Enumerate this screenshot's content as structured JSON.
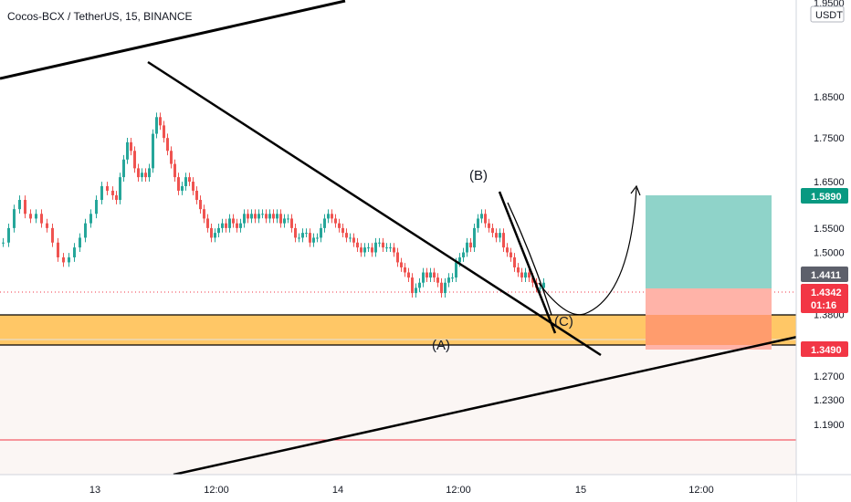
{
  "header": {
    "title": "Cocos-BCX / TetherUS, 15, BINANCE"
  },
  "price_axis": {
    "currency": "USDT",
    "top_partial_label": "1.9500",
    "tick_labels": [
      "1.8500",
      "1.7500",
      "1.6500",
      "1.5500",
      "1.5000",
      "1.3800",
      "1.3200",
      "1.2700",
      "1.2300",
      "1.1900"
    ]
  },
  "time_axis": {
    "tick_labels": [
      "13",
      "12:00",
      "14",
      "12:00",
      "15",
      "12:00"
    ]
  },
  "badges": {
    "target": {
      "label": "1.5890",
      "color": "#089981"
    },
    "mid": {
      "label": "1.4411",
      "color": "#5d606b"
    },
    "last": {
      "label": "1.4342",
      "countdown": "01:16",
      "color": "#f23645"
    },
    "stop": {
      "label": "1.3490",
      "color": "#f23645"
    }
  },
  "annotations": {
    "wave_a": "(A)",
    "wave_b": "(B)",
    "wave_c": "(C)"
  },
  "colors": {
    "up_candle": "#26a69a",
    "down_candle": "#ef5350",
    "zone_fill": "#ffb74d",
    "profit_fill": "#80cbc4",
    "loss_fill": "#ffab91",
    "red_line": "#f23645"
  },
  "chart_data": {
    "type": "candlestick",
    "title": "Cocos-BCX / TetherUS, 15, BINANCE",
    "y_unit": "USDT",
    "y_scale": "log",
    "ylim": [
      1.17,
      1.96
    ],
    "x_ticks": [
      "13",
      "12:00",
      "14",
      "12:00",
      "15",
      "12:00"
    ],
    "series": [
      {
        "x": [
          0,
          6,
          12,
          18,
          24,
          30,
          36,
          42,
          48,
          54,
          60,
          66,
          72,
          78,
          84,
          90,
          96,
          102,
          108,
          114,
          120,
          124,
          128,
          132,
          136,
          140,
          144,
          148,
          152,
          156,
          160,
          164,
          168,
          172,
          176,
          180,
          184,
          188,
          192,
          196,
          200,
          204,
          208,
          212,
          216,
          220,
          224,
          228,
          232,
          236,
          240,
          244,
          248,
          252,
          256,
          260,
          264,
          268,
          272,
          276,
          280,
          284,
          288,
          292,
          296,
          300,
          304,
          308,
          312,
          316,
          320,
          324,
          328,
          332,
          336,
          340,
          344,
          348,
          352,
          356,
          360,
          364,
          368,
          372,
          376,
          380,
          384,
          388,
          392,
          396,
          400,
          404,
          408,
          412,
          416,
          420,
          424,
          428,
          432,
          436,
          440,
          444,
          448,
          452,
          456,
          460,
          464,
          468,
          472,
          476,
          480,
          484,
          488,
          492,
          496,
          500,
          504,
          508,
          512,
          516,
          520,
          524,
          528,
          532,
          536,
          540,
          544,
          548,
          552,
          556,
          560,
          564,
          568,
          572,
          576,
          580,
          584,
          588,
          592
        ],
        "close": [
          1.52,
          1.55,
          1.59,
          1.61,
          1.58,
          1.57,
          1.58,
          1.56,
          1.55,
          1.52,
          1.49,
          1.48,
          1.49,
          1.51,
          1.53,
          1.56,
          1.58,
          1.61,
          1.64,
          1.63,
          1.62,
          1.61,
          1.66,
          1.7,
          1.74,
          1.72,
          1.68,
          1.66,
          1.67,
          1.66,
          1.68,
          1.76,
          1.8,
          1.78,
          1.75,
          1.72,
          1.69,
          1.66,
          1.63,
          1.64,
          1.66,
          1.65,
          1.63,
          1.61,
          1.59,
          1.57,
          1.55,
          1.53,
          1.54,
          1.55,
          1.56,
          1.55,
          1.57,
          1.56,
          1.55,
          1.56,
          1.58,
          1.57,
          1.58,
          1.57,
          1.58,
          1.58,
          1.57,
          1.58,
          1.57,
          1.58,
          1.56,
          1.57,
          1.57,
          1.55,
          1.53,
          1.53,
          1.54,
          1.54,
          1.52,
          1.53,
          1.53,
          1.55,
          1.57,
          1.58,
          1.57,
          1.56,
          1.55,
          1.54,
          1.53,
          1.53,
          1.52,
          1.51,
          1.5,
          1.51,
          1.51,
          1.5,
          1.52,
          1.52,
          1.51,
          1.51,
          1.51,
          1.5,
          1.48,
          1.47,
          1.46,
          1.45,
          1.42,
          1.43,
          1.44,
          1.46,
          1.45,
          1.46,
          1.45,
          1.44,
          1.42,
          1.44,
          1.45,
          1.45,
          1.48,
          1.49,
          1.5,
          1.52,
          1.51,
          1.55,
          1.57,
          1.58,
          1.56,
          1.55,
          1.54,
          1.53,
          1.54,
          1.51,
          1.5,
          1.49,
          1.47,
          1.46,
          1.45,
          1.46,
          1.45,
          1.44,
          1.43,
          1.43,
          1.44
        ]
      }
    ],
    "lines": [
      {
        "label": "channel top",
        "from": [
          0,
          1.83
        ],
        "to": [
          378,
          1.97
        ]
      },
      {
        "label": "main descending trendline",
        "from": [
          162,
          1.83
        ],
        "to": [
          658,
          1.34
        ]
      },
      {
        "label": "channel bottom",
        "from": [
          190,
          1.17
        ],
        "to": [
          932,
          1.38
        ]
      }
    ],
    "zones": [
      {
        "label": "support zone",
        "y_top": 1.4,
        "y_bottom": 1.35
      }
    ],
    "horizontal_lines": [
      {
        "y": 1.224,
        "color": "#f23645"
      }
    ],
    "position": {
      "entry": 1.4411,
      "target": 1.589,
      "stop": 1.349
    },
    "last_price": 1.4342
  }
}
